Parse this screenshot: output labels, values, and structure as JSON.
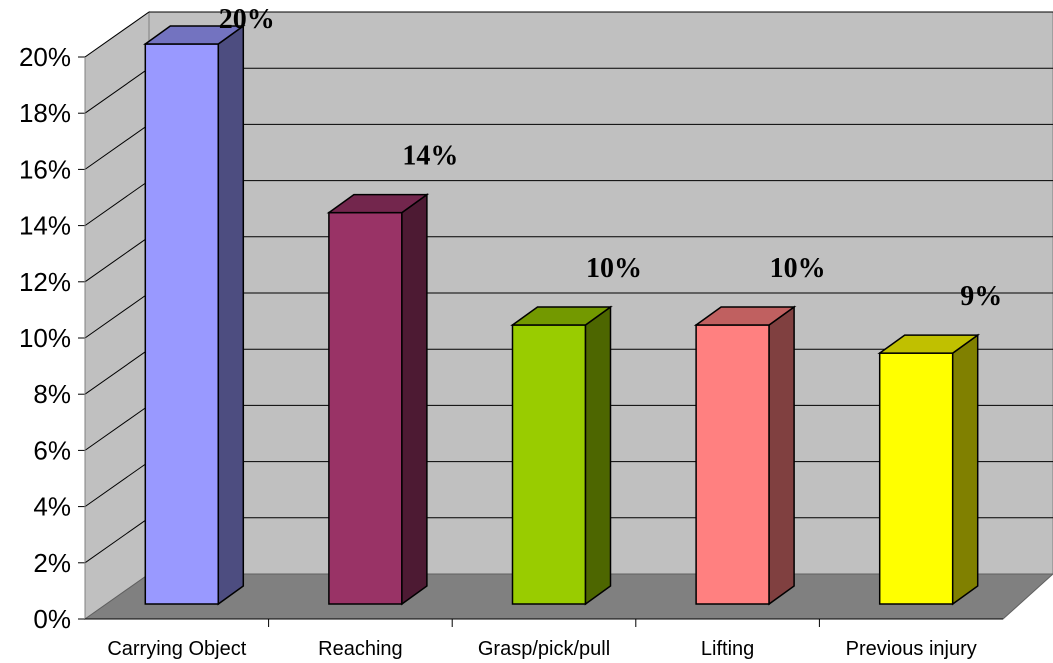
{
  "chart_data": {
    "type": "bar",
    "style": "3d-column",
    "title": "",
    "xlabel": "",
    "ylabel": "",
    "categories": [
      "Carrying Object",
      "Reaching",
      "Grasp/pick/pull",
      "Lifting",
      "Previous injury"
    ],
    "values": [
      20,
      14,
      10,
      10,
      9
    ],
    "data_labels": [
      "20%",
      "14%",
      "10%",
      "10%",
      "9%"
    ],
    "ylim": [
      0,
      20
    ],
    "yticks": [
      0,
      2,
      4,
      6,
      8,
      10,
      12,
      14,
      16,
      18,
      20
    ],
    "ytick_labels": [
      "0%",
      "2%",
      "4%",
      "6%",
      "8%",
      "10%",
      "12%",
      "14%",
      "16%",
      "18%",
      "20%"
    ],
    "grid": true,
    "legend": "none",
    "colors": {
      "bars": [
        "#9999ff",
        "#993366",
        "#99cc00",
        "#ff8080",
        "#ffff00"
      ],
      "bar_sides": [
        "#4d4d80",
        "#4d1a33",
        "#4d6600",
        "#804040",
        "#808000"
      ],
      "bar_tops": [
        "#7373c0",
        "#73264d",
        "#739900",
        "#c06060",
        "#c0c000"
      ],
      "wall": "#c0c0c0",
      "floor": "#808080"
    }
  }
}
